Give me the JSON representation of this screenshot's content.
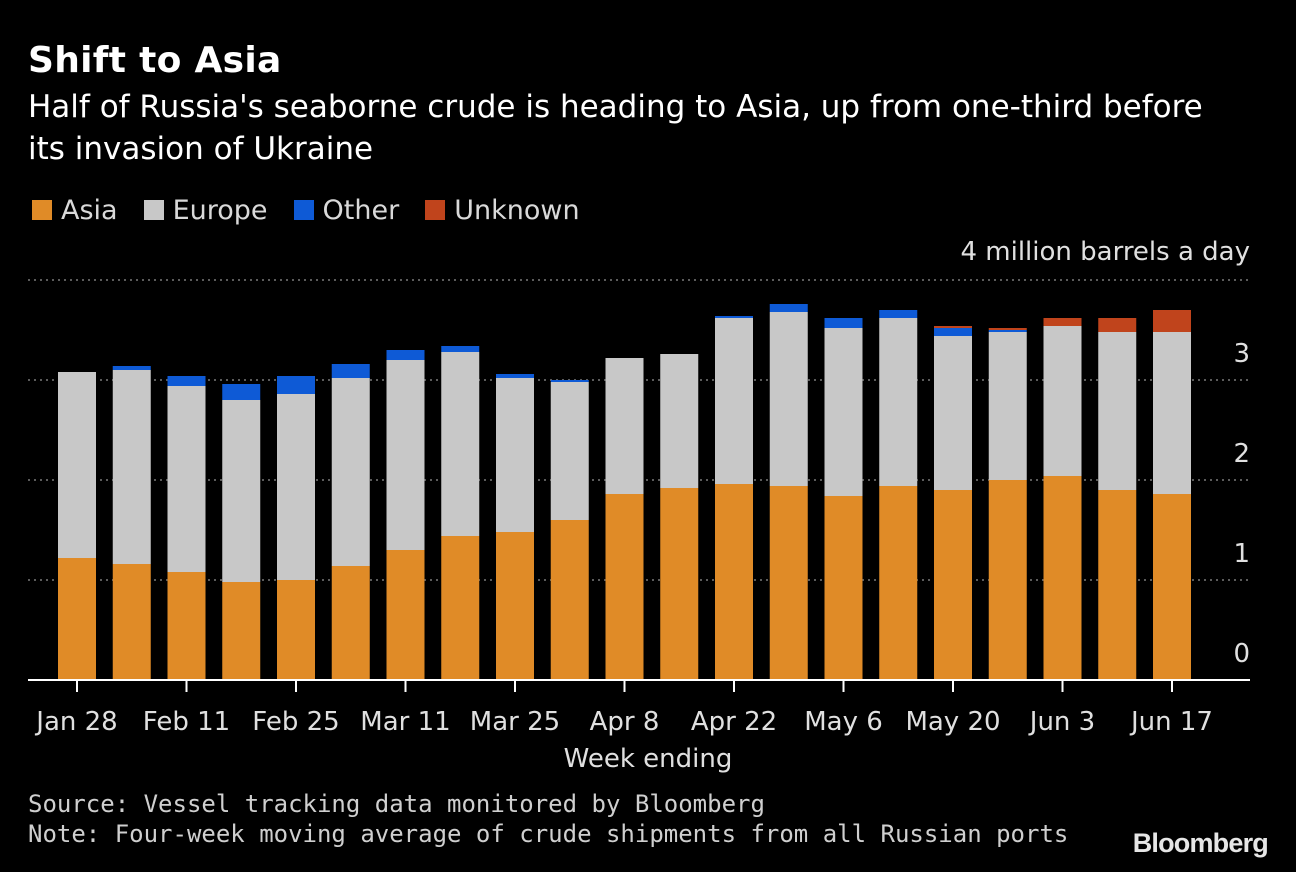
{
  "chart_data": {
    "type": "bar",
    "stacked": true,
    "title": "Shift to Asia",
    "subtitle": "Half of Russia's seaborne crude is heading to Asia, up from one-third before its invasion of Ukraine",
    "xlabel": "Week ending",
    "unit_label": "4 million barrels a day",
    "ylim": [
      0,
      4
    ],
    "y_ticks": [
      "0",
      "1",
      "2",
      "3"
    ],
    "grid": true,
    "legend_position": "top-left",
    "x_tick_labels": [
      "Jan 28",
      "Feb 11",
      "Feb 25",
      "Mar 11",
      "Mar 25",
      "Apr 8",
      "Apr 22",
      "May 6",
      "May 20",
      "Jun 3",
      "Jun 17"
    ],
    "x_tick_indices": [
      0,
      2,
      4,
      6,
      8,
      10,
      12,
      14,
      16,
      18,
      20
    ],
    "categories": [
      "Jan 28",
      "Feb 4",
      "Feb 11",
      "Feb 18",
      "Feb 25",
      "Mar 4",
      "Mar 11",
      "Mar 18",
      "Mar 25",
      "Apr 1",
      "Apr 8",
      "Apr 15",
      "Apr 22",
      "Apr 29",
      "May 6",
      "May 13",
      "May 20",
      "May 27",
      "Jun 3",
      "Jun 10",
      "Jun 17"
    ],
    "series": [
      {
        "name": "Asia",
        "color": "#e08b27",
        "values": [
          1.22,
          1.16,
          1.08,
          0.98,
          1.0,
          1.14,
          1.3,
          1.44,
          1.48,
          1.6,
          1.86,
          1.92,
          1.96,
          1.94,
          1.84,
          1.94,
          1.9,
          2.0,
          2.04,
          1.9,
          1.86
        ]
      },
      {
        "name": "Europe",
        "color": "#c8c8c8",
        "values": [
          1.86,
          1.94,
          1.86,
          1.82,
          1.86,
          1.88,
          1.9,
          1.84,
          1.54,
          1.38,
          1.36,
          1.34,
          1.66,
          1.74,
          1.68,
          1.68,
          1.54,
          1.48,
          1.5,
          1.58,
          1.62
        ]
      },
      {
        "name": "Other",
        "color": "#0e5ad6",
        "values": [
          0.0,
          0.04,
          0.1,
          0.16,
          0.18,
          0.14,
          0.1,
          0.06,
          0.04,
          0.02,
          0.0,
          0.0,
          0.02,
          0.08,
          0.1,
          0.08,
          0.08,
          0.02,
          0.0,
          0.0,
          0.0
        ]
      },
      {
        "name": "Unknown",
        "color": "#c0441c",
        "values": [
          0.0,
          0.0,
          0.0,
          0.0,
          0.0,
          0.0,
          0.0,
          0.0,
          0.0,
          0.0,
          0.0,
          0.0,
          0.0,
          0.0,
          0.0,
          0.0,
          0.02,
          0.02,
          0.08,
          0.14,
          0.22
        ]
      }
    ]
  },
  "footer": {
    "source": "Source: Vessel tracking data monitored by Bloomberg",
    "note": "Note: Four-week moving average of crude shipments from all Russian ports",
    "brand": "Bloomberg"
  },
  "colors": {
    "background": "#000000",
    "gridline": "#7a7a7a",
    "axis": "#ffffff"
  }
}
